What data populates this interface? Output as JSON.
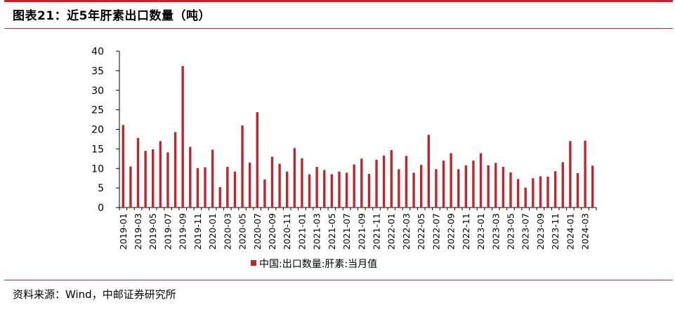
{
  "header": {
    "title": "图表21：近5年肝素出口数量（吨）"
  },
  "footer": {
    "source": "资料来源：Wind，中邮证券研究所"
  },
  "colors": {
    "accent": "#c0262d",
    "bar": "#c0262d"
  },
  "chart_data": {
    "type": "bar",
    "title": "",
    "xlabel": "",
    "ylabel": "",
    "ylim": [
      0,
      40
    ],
    "yticks": [
      "0",
      "5",
      "10",
      "15",
      "20",
      "25",
      "30",
      "35",
      "40"
    ],
    "legend": "bottom-center",
    "grid": false,
    "categories": [
      "2019-01",
      "2019-02",
      "2019-03",
      "2019-04",
      "2019-05",
      "2019-06",
      "2019-07",
      "2019-08",
      "2019-09",
      "2019-10",
      "2019-11",
      "2019-12",
      "2020-01",
      "2020-02",
      "2020-03",
      "2020-04",
      "2020-05",
      "2020-06",
      "2020-07",
      "2020-08",
      "2020-09",
      "2020-10",
      "2020-11",
      "2020-12",
      "2021-01",
      "2021-02",
      "2021-03",
      "2021-04",
      "2021-05",
      "2021-06",
      "2021-07",
      "2021-08",
      "2021-09",
      "2021-10",
      "2021-11",
      "2021-12",
      "2022-01",
      "2022-02",
      "2022-03",
      "2022-04",
      "2022-05",
      "2022-06",
      "2022-07",
      "2022-08",
      "2022-09",
      "2022-10",
      "2022-11",
      "2022-12",
      "2023-01",
      "2023-02",
      "2023-03",
      "2023-04",
      "2023-05",
      "2023-06",
      "2023-07",
      "2023-08",
      "2023-09",
      "2023-10",
      "2023-11",
      "2023-12",
      "2024-01",
      "2024-02",
      "2024-03",
      "2024-04"
    ],
    "xtick_labels": [
      "2019-01",
      "2019-03",
      "2019-05",
      "2019-07",
      "2019-09",
      "2019-11",
      "2020-01",
      "2020-03",
      "2020-05",
      "2020-07",
      "2020-09",
      "2020-11",
      "2021-01",
      "2021-03",
      "2021-05",
      "2021-07",
      "2021-09",
      "2021-11",
      "2022-01",
      "2022-03",
      "2022-05",
      "2022-07",
      "2022-09",
      "2022-11",
      "2023-01",
      "2023-03",
      "2023-05",
      "2023-07",
      "2023-09",
      "2023-11",
      "2024-01",
      "2024-03"
    ],
    "series": [
      {
        "name": "中国:出口数量:肝素:当月值",
        "values": [
          21.1,
          10.5,
          17.8,
          14.5,
          14.9,
          17.0,
          14.1,
          19.3,
          36.2,
          15.5,
          10.1,
          10.3,
          14.8,
          5.2,
          10.4,
          9.2,
          21.0,
          11.5,
          24.4,
          7.2,
          13.0,
          11.2,
          9.2,
          15.2,
          12.6,
          8.5,
          10.4,
          9.6,
          8.5,
          9.2,
          8.9,
          11.0,
          12.5,
          8.6,
          12.2,
          13.3,
          14.7,
          9.8,
          13.2,
          8.9,
          10.9,
          18.6,
          9.8,
          12.0,
          13.9,
          9.8,
          10.8,
          12.0,
          13.9,
          10.8,
          11.4,
          10.4,
          9.0,
          7.3,
          5.1,
          7.5,
          8.0,
          7.9,
          9.3,
          11.6,
          17.0,
          8.8,
          17.1,
          10.7
        ]
      }
    ]
  }
}
